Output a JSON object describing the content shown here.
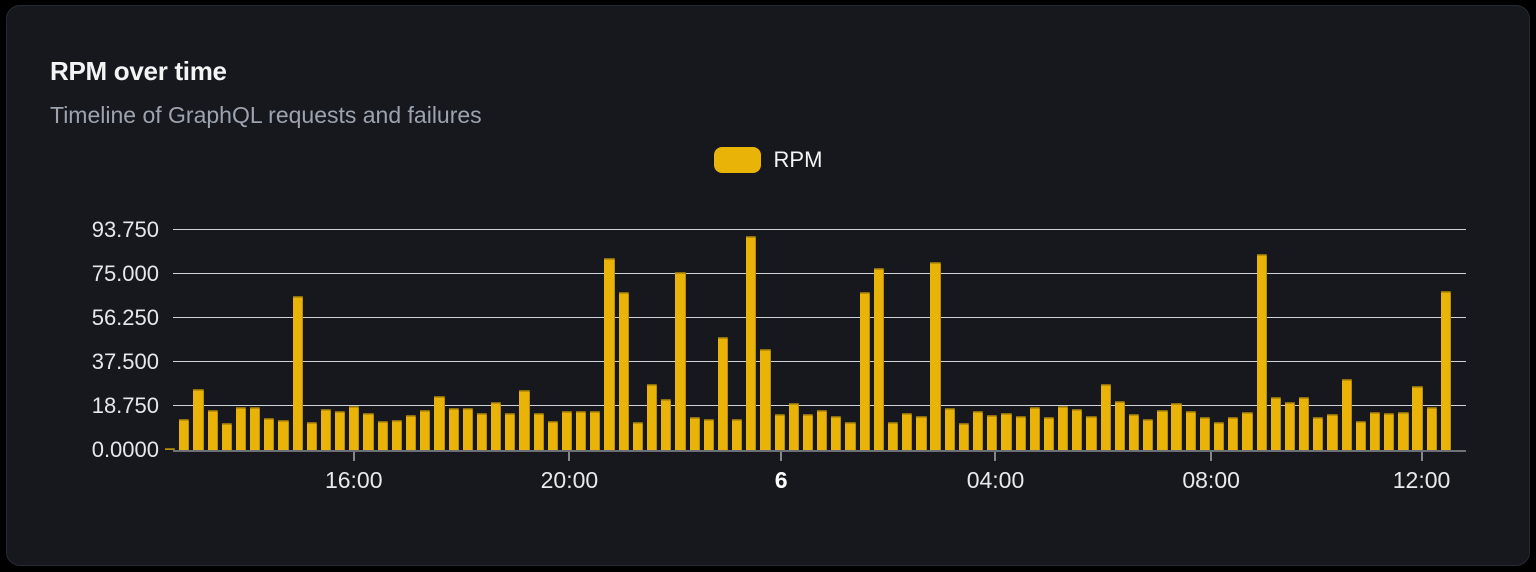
{
  "header": {
    "title": "RPM over time",
    "subtitle": "Timeline of GraphQL requests and failures"
  },
  "legend": {
    "label": "RPM",
    "color": "#eab308"
  },
  "chart_data": {
    "type": "bar",
    "title": "RPM over time",
    "subtitle": "Timeline of GraphQL requests and failures",
    "xlabel": "",
    "ylabel": "",
    "ylim": [
      0,
      93.75
    ],
    "grid": true,
    "legend_position": "top-center",
    "bar_color": "#eab308",
    "y_ticks": [
      {
        "value": 0,
        "label": "0.0000"
      },
      {
        "value": 18.75,
        "label": "18.750"
      },
      {
        "value": 37.5,
        "label": "37.500"
      },
      {
        "value": 56.25,
        "label": "56.250"
      },
      {
        "value": 75,
        "label": "75.000"
      },
      {
        "value": 93.75,
        "label": "93.750"
      }
    ],
    "x_ticks": [
      {
        "label": "16:00",
        "pos": 0.149,
        "bold": false
      },
      {
        "label": "20:00",
        "pos": 0.314,
        "bold": false
      },
      {
        "label": "6",
        "pos": 0.476,
        "bold": true
      },
      {
        "label": "04:00",
        "pos": 0.64,
        "bold": false
      },
      {
        "label": "08:00",
        "pos": 0.805,
        "bold": false
      },
      {
        "label": "12:00",
        "pos": 0.966,
        "bold": false
      }
    ],
    "series": [
      {
        "name": "RPM",
        "values": [
          1.0,
          13.2,
          26.0,
          17.0,
          11.5,
          18.3,
          18.3,
          13.6,
          13.0,
          65.6,
          12.0,
          17.6,
          16.7,
          18.6,
          16.0,
          12.4,
          13.0,
          15.0,
          17.0,
          23.0,
          18.0,
          17.8,
          16.0,
          20.3,
          15.9,
          25.6,
          16.0,
          12.5,
          16.8,
          16.8,
          16.8,
          82.0,
          67.5,
          11.8,
          28.0,
          21.6,
          76.0,
          13.9,
          13.1,
          48.3,
          13.1,
          91.3,
          42.9,
          15.2,
          19.9,
          15.3,
          17.0,
          14.6,
          12.0,
          67.5,
          77.7,
          11.8,
          15.6,
          14.6,
          80.0,
          17.8,
          11.6,
          16.6,
          14.9,
          15.6,
          14.6,
          18.2,
          13.9,
          18.9,
          17.5,
          14.6,
          28.1,
          21.0,
          15.2,
          13.1,
          17.0,
          20.2,
          16.6,
          13.9,
          11.8,
          14.2,
          16.3,
          83.5,
          22.5,
          20.6,
          22.5,
          13.9,
          15.3,
          30.1,
          12.5,
          16.3,
          15.6,
          16.1,
          27.4,
          18.2,
          67.8
        ]
      }
    ]
  }
}
